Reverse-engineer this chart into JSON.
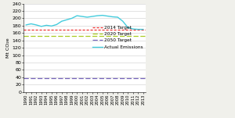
{
  "years": [
    1990,
    1991,
    1992,
    1993,
    1994,
    1995,
    1996,
    1997,
    1998,
    1999,
    2000,
    2001,
    2002,
    2003,
    2004,
    2005,
    2006,
    2007,
    2008,
    2009,
    2010,
    2011,
    2012,
    2013
  ],
  "actual_emissions": [
    182,
    185,
    182,
    178,
    181,
    179,
    183,
    192,
    196,
    200,
    207,
    205,
    203,
    205,
    207,
    208,
    206,
    204,
    203,
    192,
    175,
    171,
    170,
    170
  ],
  "target_2014": 169,
  "target_2020": 153,
  "target_2050": 37,
  "ylim": [
    0,
    240
  ],
  "yticks": [
    0,
    20,
    40,
    60,
    80,
    100,
    120,
    140,
    160,
    180,
    200,
    220,
    240
  ],
  "ylabel": "Mt CO₂e",
  "color_2014": "#ee3333",
  "color_2020": "#aacc22",
  "color_2050": "#7766bb",
  "color_actual": "#44ccdd",
  "legend_2014": "2014 Target",
  "legend_2020": "2020 Target",
  "legend_2050": "2050 Target",
  "legend_actual": "Actual Emissions",
  "bg_color": "#f0f0eb",
  "plot_bg": "#ffffff",
  "grid_color": "#cccccc"
}
